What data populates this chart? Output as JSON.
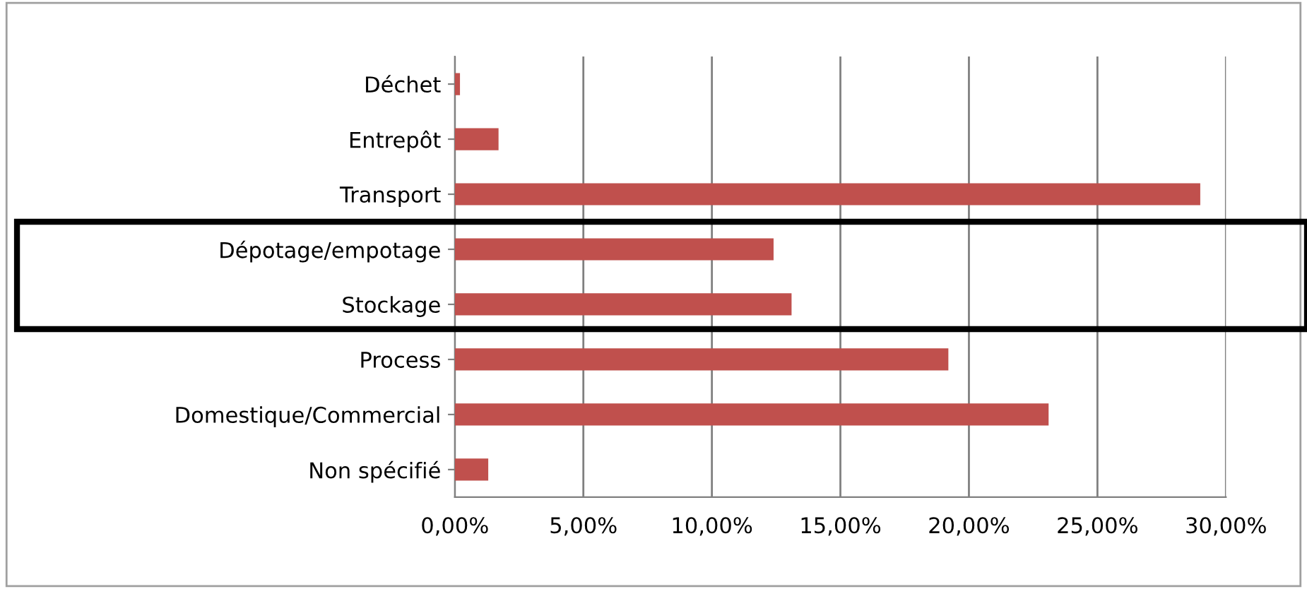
{
  "chart_data": {
    "type": "bar",
    "orientation": "horizontal",
    "categories": [
      "Déchet",
      "Entrepôt",
      "Transport",
      "Dépotage/empotage",
      "Stockage",
      "Process",
      "Domestique/Commercial",
      "Non spécifié"
    ],
    "values": [
      0.2,
      1.7,
      29.0,
      12.4,
      13.1,
      19.2,
      23.1,
      1.3
    ],
    "color": "#c0504d",
    "xlim": [
      0,
      30
    ],
    "xticks": [
      {
        "value": 0,
        "label": "0,00%"
      },
      {
        "value": 5,
        "label": "5,00%"
      },
      {
        "value": 10,
        "label": "10,00%"
      },
      {
        "value": 15,
        "label": "15,00%"
      },
      {
        "value": 20,
        "label": "20,00%"
      },
      {
        "value": 25,
        "label": "25,00%"
      },
      {
        "value": 30,
        "label": "30,00%"
      }
    ],
    "grid": "x"
  }
}
